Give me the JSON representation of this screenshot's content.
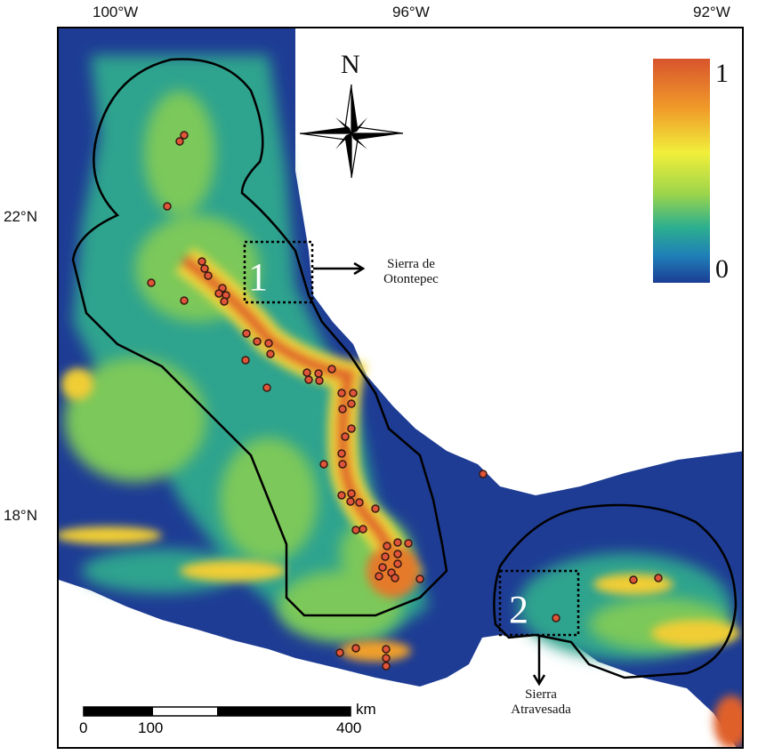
{
  "axes": {
    "top_ticks": [
      "100°W",
      "96°W",
      "92°W"
    ],
    "left_ticks": [
      "22°N",
      "18°N"
    ]
  },
  "compass": {
    "north_label": "N"
  },
  "colorbar": {
    "max_label": "1",
    "min_label": "0",
    "colors": [
      "#1b3d95",
      "#1f7fb8",
      "#2db08e",
      "#9ed54a",
      "#f1ef3a",
      "#f09a2a",
      "#d8542c"
    ]
  },
  "regions": [
    {
      "number": "1",
      "name_line1": "Sierra de",
      "name_line2": "Otontepec"
    },
    {
      "number": "2",
      "name_line1": "Sierra",
      "name_line2": "Atravesada"
    }
  ],
  "scale_bar": {
    "unit": "km",
    "labels": [
      "0",
      "100",
      "400"
    ]
  },
  "colors": {
    "ocean": "#ffffff",
    "low": "#1e3c94",
    "mid": "#3a9d7a",
    "high": "#e0602c",
    "point": "#e0553a",
    "boundary": "#000000"
  }
}
